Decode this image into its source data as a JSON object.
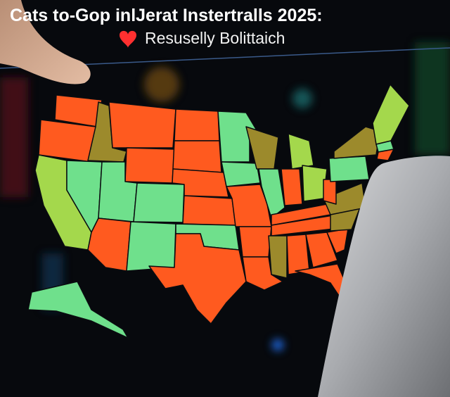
{
  "header": {
    "title": "Cats to-Gop inlJerat Instertralls 2025:",
    "subtitle": "Resuselly Bolittaich"
  }
}
